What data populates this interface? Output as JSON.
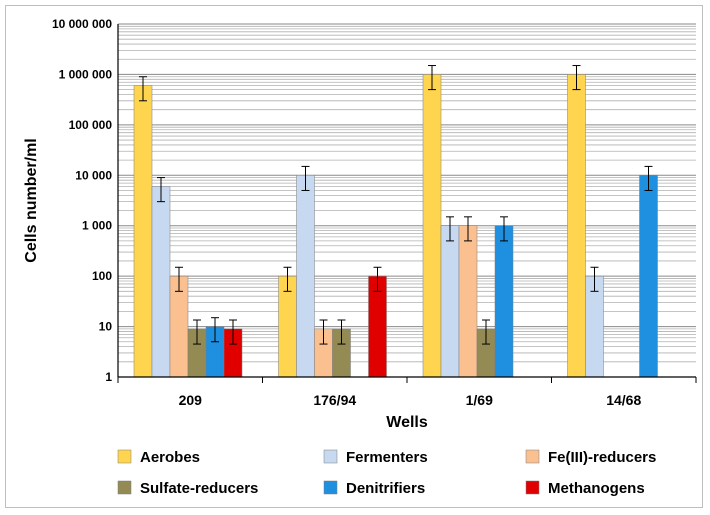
{
  "chart_data": {
    "type": "bar",
    "title": "",
    "xlabel": "Wells",
    "ylabel": "Cells number/ml",
    "y_scale": "log",
    "ylim": [
      1,
      10000000
    ],
    "y_ticks": [
      1,
      10,
      100,
      1000,
      10000,
      100000,
      1000000,
      10000000
    ],
    "y_tick_labels": [
      "1",
      "10",
      "100",
      "1 000",
      "10 000",
      "100 000",
      "1 000 000",
      "10 000 000"
    ],
    "categories": [
      "209",
      "176/94",
      "1/69",
      "14/68"
    ],
    "grid": true,
    "legend_position": "bottom",
    "error_bars": true,
    "series": [
      {
        "name": "Aerobes",
        "color": "#FFD54F",
        "values": [
          600000,
          100,
          1000000,
          1000000
        ]
      },
      {
        "name": "Fermenters",
        "color": "#C6D9F1",
        "values": [
          6000,
          10000,
          1000,
          100
        ]
      },
      {
        "name": "Fe(III)-reducers",
        "color": "#FAC090",
        "values": [
          100,
          9,
          1000,
          null
        ]
      },
      {
        "name": "Sulfate-reducers",
        "color": "#948A54",
        "values": [
          9,
          9,
          9,
          null
        ]
      },
      {
        "name": "Denitrifiers",
        "color": "#1F8FE0",
        "values": [
          10,
          null,
          1000,
          10000
        ]
      },
      {
        "name": "Methanogens",
        "color": "#E00000",
        "values": [
          9,
          100,
          null,
          null
        ]
      }
    ]
  }
}
